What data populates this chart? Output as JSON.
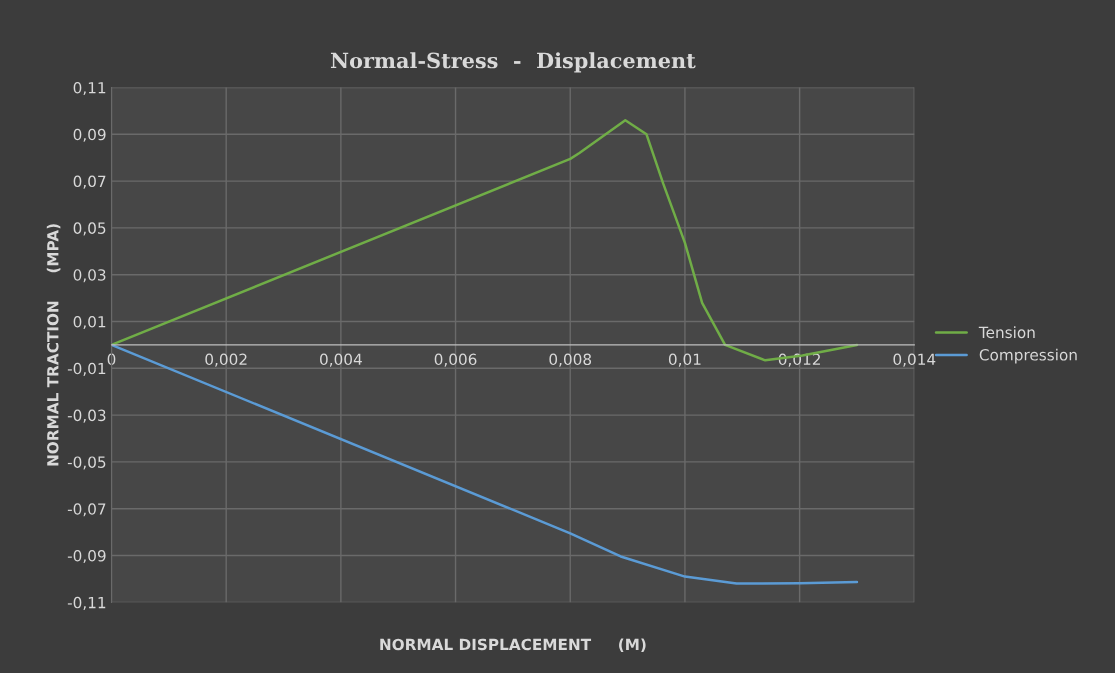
{
  "chart_data": {
    "type": "line",
    "title": "Normal-Stress  -  Displacement",
    "xlabel": "NORMAL DISPLACEMENT     (M)",
    "ylabel": "NORMAL TRACTION     (MPA)",
    "series": [
      {
        "name": "Tension",
        "color": "#70ad47",
        "x": [
          0,
          0.008,
          0.00816,
          0.00896,
          0.00933,
          0.00962,
          0.01,
          0.0103,
          0.0107,
          0.0114,
          0.01205,
          0.013
        ],
        "values": [
          0,
          0.0795,
          0.082,
          0.096,
          0.09,
          0.069,
          0.0436,
          0.018,
          0,
          -0.0066,
          -0.0045,
          0
        ]
      },
      {
        "name": "Compression",
        "color": "#5b9bd5",
        "x": [
          0,
          0.008,
          0.00888,
          0.01,
          0.0109,
          0.012,
          0.013
        ],
        "values": [
          0,
          -0.0805,
          -0.0904,
          -0.099,
          -0.102,
          -0.1018,
          -0.1013
        ]
      }
    ],
    "xlim": [
      0,
      0.014
    ],
    "ylim": [
      -0.11,
      0.11
    ],
    "xticks": [
      {
        "value": 0,
        "label": "0"
      },
      {
        "value": 0.002,
        "label": "0,002"
      },
      {
        "value": 0.004,
        "label": "0,004"
      },
      {
        "value": 0.006,
        "label": "0,006"
      },
      {
        "value": 0.008,
        "label": "0,008"
      },
      {
        "value": 0.01,
        "label": "0,01"
      },
      {
        "value": 0.012,
        "label": "0,012"
      },
      {
        "value": 0.014,
        "label": "0,014"
      }
    ],
    "yticks": [
      {
        "value": -0.11,
        "label": "-0,11"
      },
      {
        "value": -0.09,
        "label": "-0,09"
      },
      {
        "value": -0.07,
        "label": "-0,07"
      },
      {
        "value": -0.05,
        "label": "-0,05"
      },
      {
        "value": -0.03,
        "label": "-0,03"
      },
      {
        "value": -0.01,
        "label": "-0,01"
      },
      {
        "value": 0.01,
        "label": "0,01"
      },
      {
        "value": 0.03,
        "label": "0,03"
      },
      {
        "value": 0.05,
        "label": "0,05"
      },
      {
        "value": 0.07,
        "label": "0,07"
      },
      {
        "value": 0.09,
        "label": "0,09"
      },
      {
        "value": 0.11,
        "label": "0,11"
      }
    ],
    "grid": true,
    "legend": "right",
    "marker": "none",
    "line_style": "solid"
  }
}
